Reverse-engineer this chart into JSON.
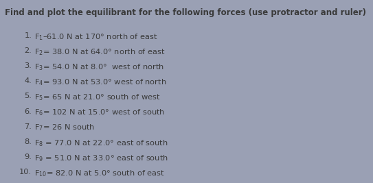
{
  "title": "Find and plot the equilibrant for the following forces (use protractor and ruler)",
  "lines": [
    {
      "num": "1.",
      "sub": "1",
      "text": "–61.0 N at 170° north of east"
    },
    {
      "num": "2.",
      "sub": "2",
      "text": "= 38.0 N at 64.0° north of east"
    },
    {
      "num": "3.",
      "sub": "3",
      "text": "= 54.0 N at 8.0°  west of north"
    },
    {
      "num": "4.",
      "sub": "4",
      "text": "= 93.0 N at 53.0° west of north"
    },
    {
      "num": "5.",
      "sub": "5",
      "text": "= 65 N at 21.0° south of west"
    },
    {
      "num": "6.",
      "sub": "6",
      "text": "= 102 N at 15.0° west of south"
    },
    {
      "num": "7.",
      "sub": "7",
      "text": "= 26 N south"
    },
    {
      "num": "8.",
      "sub": "8",
      "text": " = 77.0 N at 22.0° east of south"
    },
    {
      "num": "9.",
      "sub": "9",
      "text": " = 51.0 N at 33.0° east of south"
    },
    {
      "num": "10.",
      "sub": "10",
      "text": "= 82.0 N at 5.0° south of east"
    }
  ],
  "bg_color": "#9aa0b4",
  "text_color": "#3a3a3a",
  "title_fontsize": 8.5,
  "text_fontsize": 8.2,
  "title_bold": false,
  "fig_width": 5.43,
  "fig_height": 2.67,
  "dpi": 100
}
